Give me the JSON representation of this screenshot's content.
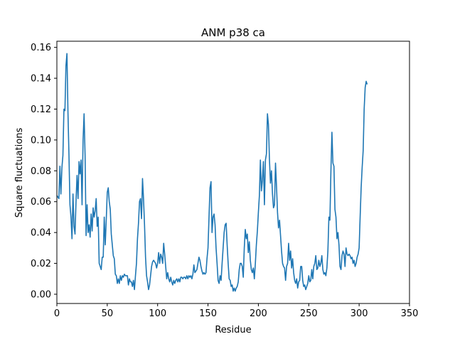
{
  "chart_data": {
    "type": "line",
    "title": "ANM p38 ca",
    "xlabel": "Residue",
    "ylabel": "Square fluctuations",
    "xlim": [
      0,
      350
    ],
    "ylim": [
      -0.006,
      0.164
    ],
    "xticks": [
      0,
      50,
      100,
      150,
      200,
      250,
      300,
      350
    ],
    "yticks": [
      0.0,
      0.02,
      0.04,
      0.06,
      0.08,
      0.1,
      0.12,
      0.14,
      0.16
    ],
    "ytick_labels": [
      "0.00",
      "0.02",
      "0.04",
      "0.06",
      "0.08",
      "0.10",
      "0.12",
      "0.14",
      "0.16"
    ],
    "grid": false,
    "legend": "none",
    "series": [
      {
        "color": "#1f77b4",
        "points": [
          [
            0,
            0.064
          ],
          [
            2,
            0.062
          ],
          [
            3,
            0.083
          ],
          [
            4,
            0.065
          ],
          [
            5,
            0.082
          ],
          [
            6,
            0.09
          ],
          [
            7,
            0.12
          ],
          [
            8,
            0.119
          ],
          [
            9,
            0.148
          ],
          [
            10,
            0.156
          ],
          [
            11,
            0.118
          ],
          [
            12,
            0.09
          ],
          [
            13,
            0.058
          ],
          [
            14,
            0.05
          ],
          [
            15,
            0.036
          ],
          [
            16,
            0.065
          ],
          [
            17,
            0.044
          ],
          [
            18,
            0.039
          ],
          [
            19,
            0.06
          ],
          [
            20,
            0.077
          ],
          [
            21,
            0.062
          ],
          [
            22,
            0.086
          ],
          [
            23,
            0.078
          ],
          [
            24,
            0.087
          ],
          [
            25,
            0.058
          ],
          [
            26,
            0.1
          ],
          [
            27,
            0.117
          ],
          [
            28,
            0.09
          ],
          [
            29,
            0.038
          ],
          [
            30,
            0.058
          ],
          [
            31,
            0.04
          ],
          [
            32,
            0.045
          ],
          [
            33,
            0.037
          ],
          [
            34,
            0.052
          ],
          [
            35,
            0.041
          ],
          [
            36,
            0.056
          ],
          [
            37,
            0.05
          ],
          [
            38,
            0.054
          ],
          [
            39,
            0.062
          ],
          [
            40,
            0.044
          ],
          [
            41,
            0.05
          ],
          [
            42,
            0.02
          ],
          [
            43,
            0.018
          ],
          [
            44,
            0.016
          ],
          [
            45,
            0.024
          ],
          [
            46,
            0.024
          ],
          [
            47,
            0.05
          ],
          [
            48,
            0.032
          ],
          [
            49,
            0.048
          ],
          [
            50,
            0.066
          ],
          [
            51,
            0.069
          ],
          [
            52,
            0.06
          ],
          [
            53,
            0.055
          ],
          [
            54,
            0.039
          ],
          [
            55,
            0.032
          ],
          [
            56,
            0.025
          ],
          [
            57,
            0.023
          ],
          [
            58,
            0.013
          ],
          [
            59,
            0.012
          ],
          [
            60,
            0.007
          ],
          [
            61,
            0.01
          ],
          [
            62,
            0.007
          ],
          [
            63,
            0.012
          ],
          [
            64,
            0.009
          ],
          [
            65,
            0.012
          ],
          [
            66,
            0.011
          ],
          [
            67,
            0.013
          ],
          [
            68,
            0.012
          ],
          [
            69,
            0.012
          ],
          [
            70,
            0.012
          ],
          [
            71,
            0.006
          ],
          [
            72,
            0.01
          ],
          [
            73,
            0.008
          ],
          [
            74,
            0.008
          ],
          [
            75,
            0.005
          ],
          [
            76,
            0.009
          ],
          [
            77,
            0.003
          ],
          [
            78,
            0.012
          ],
          [
            79,
            0.02
          ],
          [
            80,
            0.036
          ],
          [
            81,
            0.046
          ],
          [
            82,
            0.06
          ],
          [
            83,
            0.062
          ],
          [
            84,
            0.049
          ],
          [
            85,
            0.075
          ],
          [
            86,
            0.062
          ],
          [
            87,
            0.045
          ],
          [
            88,
            0.024
          ],
          [
            89,
            0.012
          ],
          [
            90,
            0.008
          ],
          [
            91,
            0.003
          ],
          [
            92,
            0.006
          ],
          [
            93,
            0.012
          ],
          [
            94,
            0.018
          ],
          [
            95,
            0.021
          ],
          [
            96,
            0.022
          ],
          [
            97,
            0.021
          ],
          [
            98,
            0.02
          ],
          [
            99,
            0.017
          ],
          [
            100,
            0.02
          ],
          [
            101,
            0.027
          ],
          [
            102,
            0.02
          ],
          [
            103,
            0.026
          ],
          [
            104,
            0.024
          ],
          [
            105,
            0.02
          ],
          [
            106,
            0.033
          ],
          [
            107,
            0.026
          ],
          [
            108,
            0.018
          ],
          [
            109,
            0.01
          ],
          [
            110,
            0.014
          ],
          [
            111,
            0.01
          ],
          [
            112,
            0.008
          ],
          [
            113,
            0.011
          ],
          [
            114,
            0.008
          ],
          [
            115,
            0.006
          ],
          [
            116,
            0.009
          ],
          [
            117,
            0.007
          ],
          [
            118,
            0.009
          ],
          [
            119,
            0.01
          ],
          [
            120,
            0.008
          ],
          [
            121,
            0.01
          ],
          [
            122,
            0.008
          ],
          [
            123,
            0.011
          ],
          [
            124,
            0.011
          ],
          [
            125,
            0.01
          ],
          [
            126,
            0.011
          ],
          [
            127,
            0.011
          ],
          [
            128,
            0.01
          ],
          [
            129,
            0.012
          ],
          [
            130,
            0.01
          ],
          [
            131,
            0.012
          ],
          [
            132,
            0.011
          ],
          [
            133,
            0.012
          ],
          [
            134,
            0.01
          ],
          [
            135,
            0.013
          ],
          [
            136,
            0.019
          ],
          [
            137,
            0.014
          ],
          [
            138,
            0.015
          ],
          [
            139,
            0.016
          ],
          [
            140,
            0.02
          ],
          [
            141,
            0.024
          ],
          [
            142,
            0.022
          ],
          [
            143,
            0.018
          ],
          [
            144,
            0.015
          ],
          [
            145,
            0.013
          ],
          [
            146,
            0.014
          ],
          [
            147,
            0.013
          ],
          [
            148,
            0.014
          ],
          [
            149,
            0.023
          ],
          [
            150,
            0.03
          ],
          [
            151,
            0.05
          ],
          [
            152,
            0.069
          ],
          [
            153,
            0.073
          ],
          [
            154,
            0.04
          ],
          [
            155,
            0.05
          ],
          [
            156,
            0.052
          ],
          [
            157,
            0.045
          ],
          [
            158,
            0.03
          ],
          [
            159,
            0.02
          ],
          [
            160,
            0.009
          ],
          [
            161,
            0.007
          ],
          [
            162,
            0.012
          ],
          [
            163,
            0.009
          ],
          [
            164,
            0.02
          ],
          [
            165,
            0.03
          ],
          [
            166,
            0.04
          ],
          [
            167,
            0.045
          ],
          [
            168,
            0.046
          ],
          [
            169,
            0.032
          ],
          [
            170,
            0.02
          ],
          [
            171,
            0.01
          ],
          [
            172,
            0.009
          ],
          [
            173,
            0.005
          ],
          [
            174,
            0.006
          ],
          [
            175,
            0.002
          ],
          [
            176,
            0.004
          ],
          [
            177,
            0.002
          ],
          [
            178,
            0.004
          ],
          [
            179,
            0.005
          ],
          [
            180,
            0.008
          ],
          [
            181,
            0.016
          ],
          [
            182,
            0.02
          ],
          [
            183,
            0.02
          ],
          [
            184,
            0.018
          ],
          [
            185,
            0.011
          ],
          [
            186,
            0.03
          ],
          [
            187,
            0.042
          ],
          [
            188,
            0.036
          ],
          [
            189,
            0.039
          ],
          [
            190,
            0.027
          ],
          [
            191,
            0.034
          ],
          [
            192,
            0.022
          ],
          [
            193,
            0.016
          ],
          [
            194,
            0.014
          ],
          [
            195,
            0.017
          ],
          [
            196,
            0.01
          ],
          [
            197,
            0.02
          ],
          [
            198,
            0.032
          ],
          [
            199,
            0.041
          ],
          [
            200,
            0.053
          ],
          [
            201,
            0.064
          ],
          [
            202,
            0.087
          ],
          [
            203,
            0.067
          ],
          [
            204,
            0.074
          ],
          [
            205,
            0.086
          ],
          [
            206,
            0.058
          ],
          [
            207,
            0.087
          ],
          [
            208,
            0.091
          ],
          [
            209,
            0.117
          ],
          [
            210,
            0.11
          ],
          [
            211,
            0.087
          ],
          [
            212,
            0.072
          ],
          [
            213,
            0.08
          ],
          [
            214,
            0.065
          ],
          [
            215,
            0.056
          ],
          [
            216,
            0.058
          ],
          [
            217,
            0.085
          ],
          [
            218,
            0.07
          ],
          [
            219,
            0.053
          ],
          [
            220,
            0.043
          ],
          [
            221,
            0.048
          ],
          [
            222,
            0.038
          ],
          [
            223,
            0.028
          ],
          [
            224,
            0.02
          ],
          [
            225,
            0.018
          ],
          [
            226,
            0.017
          ],
          [
            227,
            0.009
          ],
          [
            228,
            0.018
          ],
          [
            229,
            0.02
          ],
          [
            230,
            0.033
          ],
          [
            231,
            0.022
          ],
          [
            232,
            0.028
          ],
          [
            233,
            0.017
          ],
          [
            234,
            0.023
          ],
          [
            235,
            0.014
          ],
          [
            236,
            0.009
          ],
          [
            237,
            0.007
          ],
          [
            238,
            0.01
          ],
          [
            239,
            0.004
          ],
          [
            240,
            0.008
          ],
          [
            241,
            0.009
          ],
          [
            242,
            0.018
          ],
          [
            243,
            0.018
          ],
          [
            244,
            0.009
          ],
          [
            245,
            0.005
          ],
          [
            246,
            0.006
          ],
          [
            247,
            0.003
          ],
          [
            248,
            0.005
          ],
          [
            249,
            0.007
          ],
          [
            250,
            0.012
          ],
          [
            251,
            0.008
          ],
          [
            252,
            0.009
          ],
          [
            253,
            0.016
          ],
          [
            254,
            0.01
          ],
          [
            255,
            0.018
          ],
          [
            256,
            0.02
          ],
          [
            257,
            0.025
          ],
          [
            258,
            0.016
          ],
          [
            259,
            0.017
          ],
          [
            260,
            0.022
          ],
          [
            261,
            0.018
          ],
          [
            262,
            0.02
          ],
          [
            263,
            0.025
          ],
          [
            264,
            0.016
          ],
          [
            265,
            0.013
          ],
          [
            266,
            0.014
          ],
          [
            267,
            0.012
          ],
          [
            268,
            0.017
          ],
          [
            269,
            0.028
          ],
          [
            270,
            0.05
          ],
          [
            271,
            0.048
          ],
          [
            272,
            0.08
          ],
          [
            273,
            0.105
          ],
          [
            274,
            0.085
          ],
          [
            275,
            0.083
          ],
          [
            276,
            0.055
          ],
          [
            277,
            0.05
          ],
          [
            278,
            0.036
          ],
          [
            279,
            0.04
          ],
          [
            280,
            0.032
          ],
          [
            281,
            0.018
          ],
          [
            282,
            0.016
          ],
          [
            283,
            0.025
          ],
          [
            284,
            0.028
          ],
          [
            285,
            0.026
          ],
          [
            286,
            0.018
          ],
          [
            287,
            0.03
          ],
          [
            288,
            0.026
          ],
          [
            289,
            0.025
          ],
          [
            290,
            0.026
          ],
          [
            291,
            0.025
          ],
          [
            292,
            0.023
          ],
          [
            293,
            0.024
          ],
          [
            294,
            0.02
          ],
          [
            295,
            0.022
          ],
          [
            296,
            0.018
          ],
          [
            297,
            0.02
          ],
          [
            298,
            0.024
          ],
          [
            299,
            0.026
          ],
          [
            300,
            0.03
          ],
          [
            301,
            0.05
          ],
          [
            302,
            0.069
          ],
          [
            303,
            0.082
          ],
          [
            304,
            0.093
          ],
          [
            305,
            0.12
          ],
          [
            306,
            0.134
          ],
          [
            307,
            0.138
          ],
          [
            308,
            0.136
          ]
        ]
      }
    ]
  }
}
